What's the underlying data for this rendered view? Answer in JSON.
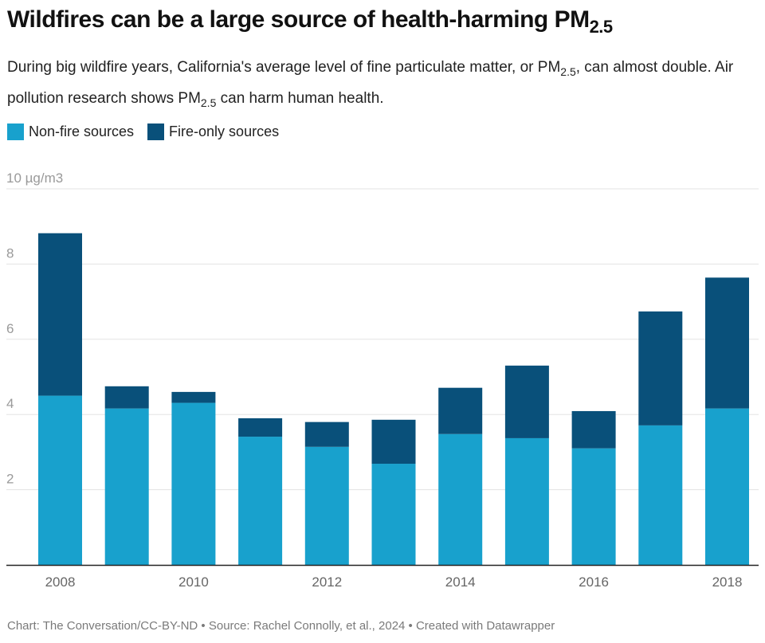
{
  "header": {
    "title_main": "Wildfires can be a large source of health-harming PM",
    "title_sub": "2.5",
    "subtitle_part1": "During big wildfire years, California's average level of fine particulate matter, or PM",
    "subtitle_sub1": "2.5",
    "subtitle_part2": ", can almost double. Air pollution research shows PM",
    "subtitle_sub2": "2.5",
    "subtitle_part3": " can harm human health."
  },
  "legend": [
    {
      "label": "Non-fire sources",
      "color": "#18a1cd"
    },
    {
      "label": "Fire-only sources",
      "color": "#09507a"
    }
  ],
  "footer": "Chart: The Conversation/CC-BY-ND • Source: Rachel Connolly, et al., 2024 • Created with Datawrapper",
  "chart_data": {
    "type": "bar",
    "stacked": true,
    "title": "Wildfires can be a large source of health-harming PM2.5",
    "xlabel": "",
    "ylabel": "µg/m3",
    "categories": [
      "2008",
      "2009",
      "2010",
      "2011",
      "2012",
      "2013",
      "2014",
      "2015",
      "2016",
      "2017",
      "2018"
    ],
    "series": [
      {
        "name": "Non-fire sources",
        "color": "#18a1cd",
        "values": [
          4.5,
          4.16,
          4.31,
          3.41,
          3.14,
          2.69,
          3.48,
          3.37,
          3.1,
          3.71,
          4.16
        ]
      },
      {
        "name": "Fire-only sources",
        "color": "#09507a",
        "values": [
          4.32,
          0.59,
          0.29,
          0.49,
          0.66,
          1.17,
          1.23,
          1.93,
          0.99,
          3.03,
          3.48
        ]
      }
    ],
    "ylim": [
      0,
      10
    ],
    "yticks": [
      2,
      4,
      6,
      8,
      10
    ],
    "ytick_labels": [
      "2",
      "4",
      "6",
      "8",
      "10 µg/m3"
    ],
    "xtick_labels": [
      "2008",
      "2010",
      "2012",
      "2014",
      "2016",
      "2018"
    ],
    "grid": true,
    "legend_position": "top-left"
  }
}
